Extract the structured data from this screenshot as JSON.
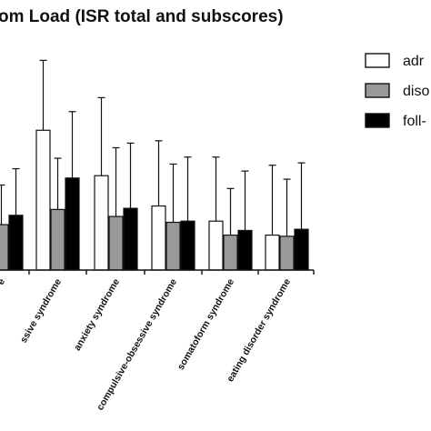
{
  "chart_data": {
    "type": "bar",
    "title": "om Load (ISR total and subscores)",
    "categories": [
      "e",
      "ssive syndrome",
      "anxiety syndrome",
      "compulsive-obsessive syndrome",
      "somatoform syndrome",
      "eating disorder syndrome"
    ],
    "series": [
      {
        "name": "adr",
        "color": "#ffffff",
        "values": [
          0.41,
          1.2,
          0.81,
          0.55,
          0.42,
          0.3
        ],
        "error": [
          0.34,
          0.6,
          0.67,
          0.56,
          0.55,
          0.6
        ]
      },
      {
        "name": "diso",
        "color": "#999999",
        "values": [
          0.39,
          0.52,
          0.46,
          0.41,
          0.3,
          0.29
        ],
        "error": [
          0.34,
          0.44,
          0.59,
          0.5,
          0.4,
          0.49
        ]
      },
      {
        "name": "foll-",
        "color": "#000000",
        "values": [
          0.47,
          0.79,
          0.53,
          0.42,
          0.34,
          0.35
        ],
        "error": [
          0.4,
          0.57,
          0.56,
          0.55,
          0.51,
          0.57
        ]
      }
    ],
    "ylim": [
      0,
      1.85
    ],
    "grid": false,
    "legend": "right"
  }
}
